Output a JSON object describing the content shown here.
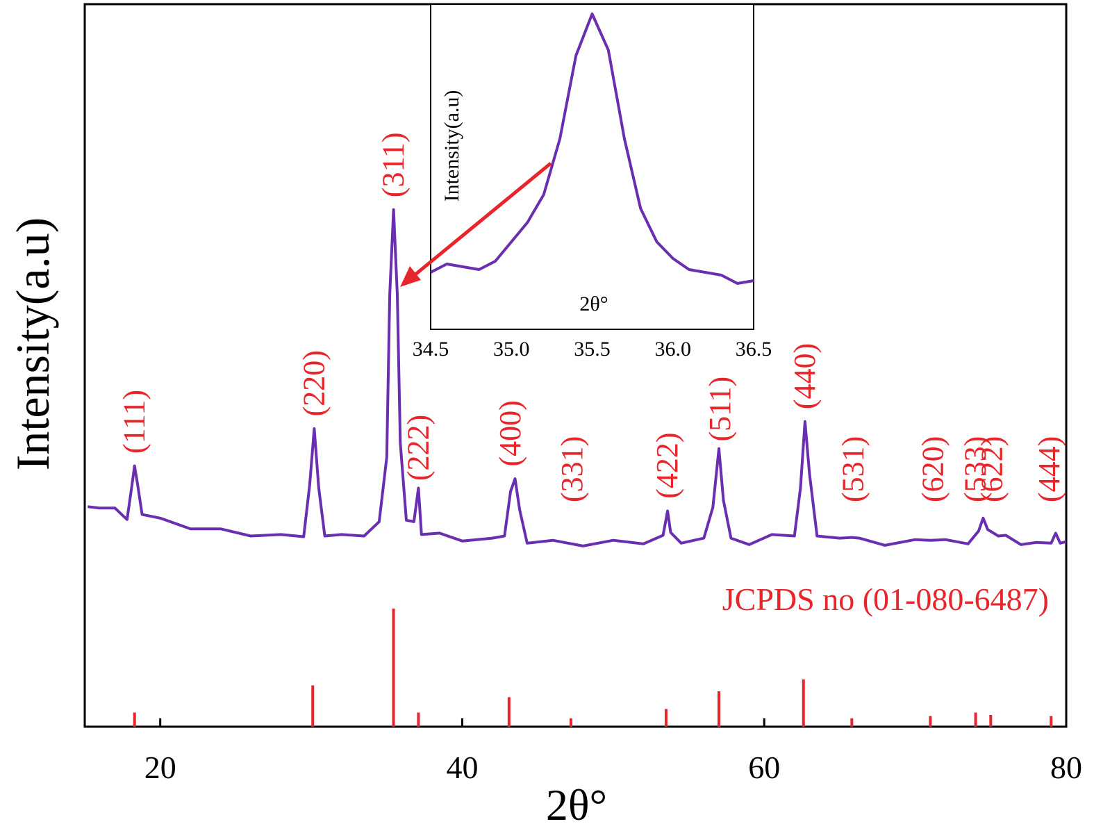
{
  "chart_data": {
    "type": "line",
    "xlabel": "2θ°",
    "ylabel": "Intensity(a.u)",
    "xlim": [
      15,
      80
    ],
    "ylim": [
      0,
      100
    ],
    "xticks": [
      20,
      40,
      60,
      80
    ],
    "series_color": "#6a2fb0",
    "reference_color": "#e8252a",
    "series": [
      {
        "values": [
          [
            15.2,
            30.4
          ],
          [
            16.0,
            30.9
          ],
          [
            17.0,
            30.2
          ],
          [
            17.8,
            29.3
          ],
          [
            18.1,
            33.0
          ],
          [
            18.3,
            36.8
          ],
          [
            18.5,
            33.5
          ],
          [
            18.8,
            30.0
          ],
          [
            20.0,
            28.8
          ],
          [
            22.0,
            28.0
          ],
          [
            24.0,
            27.3
          ],
          [
            26.0,
            27.0
          ],
          [
            28.0,
            26.5
          ],
          [
            29.5,
            26.9
          ],
          [
            29.9,
            33.5
          ],
          [
            30.2,
            42.0
          ],
          [
            30.5,
            33.0
          ],
          [
            30.9,
            27.0
          ],
          [
            32.0,
            26.5
          ],
          [
            33.5,
            27.0
          ],
          [
            34.5,
            28.3
          ],
          [
            35.0,
            38.0
          ],
          [
            35.2,
            60.0
          ],
          [
            35.45,
            72.6
          ],
          [
            35.7,
            60.0
          ],
          [
            35.9,
            40.0
          ],
          [
            36.3,
            28.5
          ],
          [
            36.8,
            29.0
          ],
          [
            37.1,
            33.0
          ],
          [
            37.3,
            27.2
          ],
          [
            38.5,
            26.7
          ],
          [
            40.0,
            26.3
          ],
          [
            42.0,
            26.0
          ],
          [
            42.8,
            27.0
          ],
          [
            43.2,
            32.5
          ],
          [
            43.5,
            35.0
          ],
          [
            43.8,
            30.0
          ],
          [
            44.3,
            26.0
          ],
          [
            46.0,
            25.7
          ],
          [
            48.0,
            25.6
          ],
          [
            50.0,
            25.7
          ],
          [
            52.0,
            25.9
          ],
          [
            53.3,
            26.4
          ],
          [
            53.6,
            30.5
          ],
          [
            53.8,
            26.8
          ],
          [
            54.5,
            26.0
          ],
          [
            56.0,
            26.0
          ],
          [
            56.6,
            31.0
          ],
          [
            57.0,
            38.5
          ],
          [
            57.3,
            32.0
          ],
          [
            57.8,
            26.0
          ],
          [
            59.0,
            25.8
          ],
          [
            60.5,
            26.5
          ],
          [
            62.0,
            27.0
          ],
          [
            62.4,
            33.0
          ],
          [
            62.7,
            43.0
          ],
          [
            63.0,
            35.0
          ],
          [
            63.5,
            27.0
          ],
          [
            65.0,
            26.0
          ],
          [
            65.8,
            26.8
          ],
          [
            66.3,
            26.0
          ],
          [
            68.0,
            25.7
          ],
          [
            70.0,
            25.8
          ],
          [
            71.0,
            26.4
          ],
          [
            72.0,
            25.8
          ],
          [
            73.5,
            25.9
          ],
          [
            74.2,
            27.0
          ],
          [
            74.5,
            29.5
          ],
          [
            74.8,
            27.2
          ],
          [
            75.5,
            27.0
          ],
          [
            76.0,
            26.4
          ],
          [
            77.0,
            25.8
          ],
          [
            78.0,
            25.4
          ],
          [
            79.0,
            26.0
          ],
          [
            79.3,
            26.7
          ],
          [
            79.6,
            26.0
          ],
          [
            80.0,
            25.5
          ]
        ]
      }
    ],
    "peak_labels": [
      {
        "x": 18.3,
        "text": "(111)"
      },
      {
        "x": 30.2,
        "text": "(220)"
      },
      {
        "x": 35.45,
        "text": "(311)"
      },
      {
        "x": 37.1,
        "text": "(222)"
      },
      {
        "x": 43.2,
        "text": "(400)"
      },
      {
        "x": 47.3,
        "text": "(331)"
      },
      {
        "x": 53.6,
        "text": "(422)"
      },
      {
        "x": 57.1,
        "text": "(511)"
      },
      {
        "x": 62.7,
        "text": "(440)"
      },
      {
        "x": 65.9,
        "text": "(531)"
      },
      {
        "x": 71.2,
        "text": "(620)"
      },
      {
        "x": 74.0,
        "text": "(533)"
      },
      {
        "x": 75.1,
        "text": "(622)"
      },
      {
        "x": 78.9,
        "text": "(444)"
      }
    ],
    "reference_pattern": {
      "label": "JCPDS no (01-080-6487)",
      "lines": [
        {
          "x": 18.3,
          "h": 12
        },
        {
          "x": 30.1,
          "h": 35
        },
        {
          "x": 35.45,
          "h": 100
        },
        {
          "x": 37.1,
          "h": 12
        },
        {
          "x": 43.1,
          "h": 25
        },
        {
          "x": 47.2,
          "h": 7
        },
        {
          "x": 53.5,
          "h": 15
        },
        {
          "x": 57.0,
          "h": 30
        },
        {
          "x": 62.6,
          "h": 40
        },
        {
          "x": 65.8,
          "h": 7
        },
        {
          "x": 71.0,
          "h": 9
        },
        {
          "x": 74.0,
          "h": 12
        },
        {
          "x": 75.0,
          "h": 10
        },
        {
          "x": 79.0,
          "h": 9
        }
      ]
    },
    "inset": {
      "type": "line",
      "xlabel": "2θ°",
      "ylabel": "Intensity(a.u)",
      "xlim": [
        34.5,
        36.5
      ],
      "xticks": [
        "34.5",
        "35.0",
        "35.5",
        "36.0",
        "36.5"
      ],
      "values": [
        [
          34.5,
          7
        ],
        [
          34.6,
          10
        ],
        [
          34.7,
          9
        ],
        [
          34.8,
          8
        ],
        [
          34.9,
          11
        ],
        [
          35.0,
          18
        ],
        [
          35.1,
          25
        ],
        [
          35.2,
          35
        ],
        [
          35.3,
          55
        ],
        [
          35.4,
          85
        ],
        [
          35.5,
          100
        ],
        [
          35.6,
          87
        ],
        [
          35.7,
          55
        ],
        [
          35.8,
          30
        ],
        [
          35.9,
          18
        ],
        [
          36.0,
          12
        ],
        [
          36.1,
          8
        ],
        [
          36.2,
          7
        ],
        [
          36.3,
          6
        ],
        [
          36.4,
          3
        ],
        [
          36.5,
          4
        ]
      ]
    }
  }
}
